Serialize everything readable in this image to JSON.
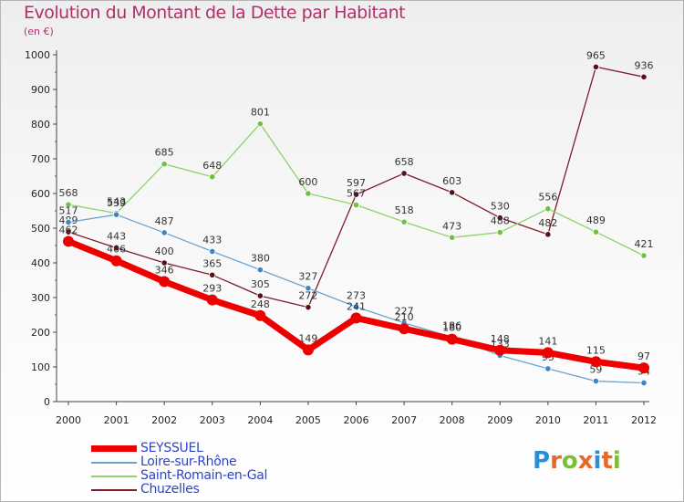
{
  "header": {
    "title": "Evolution du Montant de la Dette par Habitant",
    "unit": "(en €)"
  },
  "logo": {
    "text": "Proxiti",
    "letter_colors": [
      "#2b8fd6",
      "#e8682a",
      "#7cbf35",
      "#e8682a",
      "#2b8fd6",
      "#e8682a",
      "#7cbf35"
    ]
  },
  "chart_data": {
    "type": "line",
    "title": "Evolution du Montant de la Dette par Habitant",
    "subtitle": "(en €)",
    "xlabel": "",
    "ylabel": "",
    "ylim": [
      0,
      1000
    ],
    "yticks": [
      "0",
      "100",
      "200",
      "300",
      "400",
      "500",
      "600",
      "700",
      "800",
      "900",
      "1000"
    ],
    "x": [
      "2000",
      "2001",
      "2002",
      "2003",
      "2004",
      "2005",
      "2006",
      "2007",
      "2008",
      "2009",
      "2010",
      "2011",
      "2012"
    ],
    "grid": false,
    "legend_position": "bottom-left",
    "series": [
      {
        "name": "Chuzelles",
        "color": "#7b1e2a",
        "marker": "#5a1018",
        "width": 1.3,
        "values": [
          489,
          443,
          400,
          365,
          305,
          272,
          597,
          658,
          603,
          530,
          482,
          965,
          936
        ],
        "labels": [
          "489",
          "443",
          "400",
          "365",
          "305",
          "272",
          "597",
          "658",
          "603",
          "530",
          "482",
          "965",
          "936"
        ]
      },
      {
        "name": "Saint-Romain-en-Gal",
        "color": "#8fd16a",
        "marker": "#6fc043",
        "width": 1.3,
        "values": [
          568,
          543,
          685,
          648,
          801,
          600,
          567,
          518,
          473,
          488,
          556,
          489,
          421
        ],
        "labels": [
          "568",
          "543",
          "685",
          "648",
          "801",
          "600",
          "567",
          "518",
          "473",
          "488",
          "556",
          "489",
          "421"
        ]
      },
      {
        "name": "Loire-sur-Rhône",
        "color": "#6aa4d4",
        "marker": "#3b86c9",
        "width": 1.3,
        "values": [
          517,
          539,
          487,
          433,
          380,
          327,
          273,
          227,
          186,
          133,
          95,
          59,
          54
        ],
        "labels": [
          "517",
          "539",
          "487",
          "433",
          "380",
          "327",
          "273",
          "227",
          "186",
          "133",
          "95",
          "59",
          "54"
        ]
      },
      {
        "name": "SEYSSUEL",
        "color": "#ee0000",
        "marker": "#ee0000",
        "width": 7,
        "values": [
          462,
          406,
          346,
          293,
          248,
          149,
          241,
          210,
          180,
          148,
          141,
          115,
          97
        ],
        "labels": [
          "462",
          "406",
          "346",
          "293",
          "248",
          "149",
          "241",
          "210",
          "180",
          "148",
          "141",
          "115",
          "97"
        ]
      }
    ],
    "legend": [
      {
        "name": "SEYSSUEL",
        "color": "#ee0000",
        "text_color": "#2c44c8"
      },
      {
        "name": "Loire-sur-Rhône",
        "color": "#6aa4d4",
        "text_color": "#2c44c8"
      },
      {
        "name": "Saint-Romain-en-Gal",
        "color": "#8fd16a",
        "text_color": "#2c44c8"
      },
      {
        "name": "Chuzelles",
        "color": "#7b1e2a",
        "text_color": "#2c44c8"
      }
    ]
  }
}
